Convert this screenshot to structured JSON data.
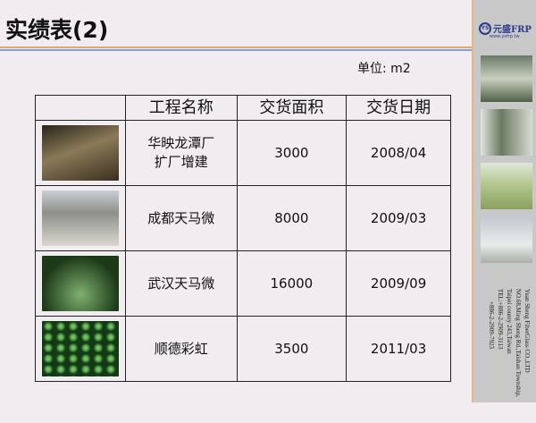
{
  "title": "实绩表(2)",
  "unit": "单位: m2",
  "table": {
    "headers": [
      "",
      "工程名称",
      "交货面积",
      "交货日期"
    ],
    "rows": [
      {
        "name": [
          "华映龙潭厂",
          "扩厂增建"
        ],
        "area": "3000",
        "date": "2008/04",
        "photo_color": "#5a4a30"
      },
      {
        "name": [
          "成都天马微"
        ],
        "area": "8000",
        "date": "2009/03",
        "photo_color": "#a6a7a2"
      },
      {
        "name": [
          "武汉天马微"
        ],
        "area": "16000",
        "date": "2009/09",
        "photo_color": "#2f5a2a"
      },
      {
        "name": [
          "顺德彩虹"
        ],
        "area": "3500",
        "date": "2011/03",
        "photo_color": "#1e4a20"
      }
    ]
  },
  "sidebar": {
    "logo": {
      "mark": "YS",
      "name": "元盛FRP",
      "url": "www.ysfrp.tw"
    },
    "address": [
      "Yuan Sheng FiberGlass CO.,LTD",
      "NO.68,Ming Sheng Rd.,Taishan Township,",
      "Taipei county 243,Taiwan",
      "TEL:+886-2-2909-3113",
      "+886-2-2909-7923"
    ]
  }
}
